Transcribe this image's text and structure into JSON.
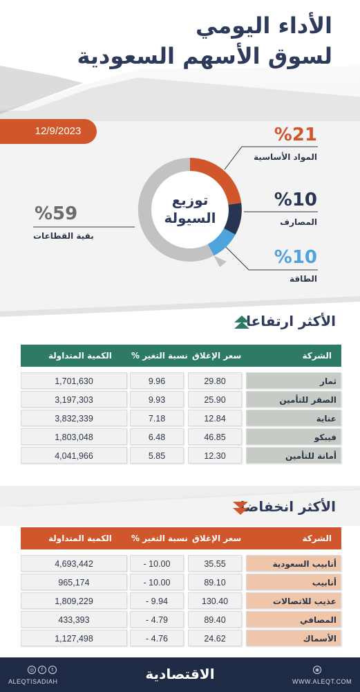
{
  "header": {
    "title_line1": "الأداء اليومي",
    "title_line2": "لسوق الأسهم السعودية",
    "date": "12/9/2023"
  },
  "liquidity": {
    "center_label_line1": "توزيع",
    "center_label_line2": "السيولة",
    "segments": [
      {
        "label": "المواد الأساسية",
        "value": "21%",
        "pct_display": "%21",
        "color": "#d0562b"
      },
      {
        "label": "المصارف",
        "value": "10%",
        "pct_display": "%10",
        "color": "#283552"
      },
      {
        "label": "الطاقة",
        "value": "10%",
        "pct_display": "%10",
        "color": "#4fa3dc"
      },
      {
        "label": "بقية القطاعات",
        "value": "59%",
        "pct_display": "%59",
        "color": "#c2c2c2"
      }
    ]
  },
  "gainers": {
    "title": "الأكثر ارتفاعا",
    "header_color": "#2d7a67",
    "columns": {
      "company": "الشركة",
      "close": "سعر الإغلاق",
      "change": "نسبة التغير %",
      "volume": "الكمية المتداولة"
    },
    "rows": [
      {
        "company": "ثمار",
        "close": "29.80",
        "change": "9.96",
        "volume": "1,701,630"
      },
      {
        "company": "الصقر للتأمين",
        "close": "25.90",
        "change": "9.93",
        "volume": "3,197,303"
      },
      {
        "company": "عناية",
        "close": "12.84",
        "change": "7.18",
        "volume": "3,832,339"
      },
      {
        "company": "فيبكو",
        "close": "46.85",
        "change": "6.48",
        "volume": "1,803,048"
      },
      {
        "company": "أمانة للتأمين",
        "close": "12.30",
        "change": "5.85",
        "volume": "4,041,966"
      }
    ]
  },
  "losers": {
    "title": "الأكثر انخفاضا",
    "header_color": "#d0562b",
    "columns": {
      "company": "الشركة",
      "close": "سعر الإغلاق",
      "change": "نسبة التغير %",
      "volume": "الكمية المتداولة"
    },
    "rows": [
      {
        "company": "أنابيب السعودية",
        "close": "35.55",
        "change": "- 10.00",
        "volume": "4,693,442"
      },
      {
        "company": "أنابيب",
        "close": "89.10",
        "change": "- 10.00",
        "volume": "965,174"
      },
      {
        "company": "عذيب للاتصالات",
        "close": "130.40",
        "change": "- 9.94",
        "volume": "1,809,229"
      },
      {
        "company": "المصافي",
        "close": "89.40",
        "change": "- 4.79",
        "volume": "433,393"
      },
      {
        "company": "الأسماك",
        "close": "24.62",
        "change": "- 4.76",
        "volume": "1,127,498"
      }
    ]
  },
  "footer": {
    "brand": "الاقتصادية",
    "handle": "ALEQTISADIAH",
    "website": "WWW.ALEQT.COM",
    "icons": [
      "instagram-icon",
      "facebook-icon",
      "twitter-icon",
      "globe-icon"
    ]
  }
}
